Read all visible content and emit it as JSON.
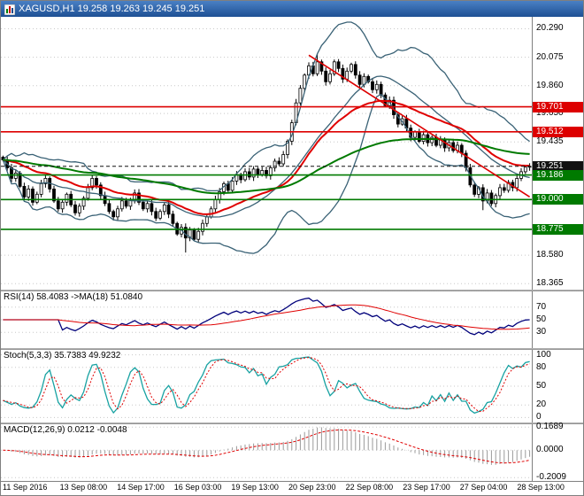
{
  "window": {
    "title": "XAGUSD,H1 19.258 19.263 19.245 19.251",
    "symbol": "XAGUSD,H1",
    "quote_open": "19.258",
    "quote_high": "19.263",
    "quote_low": "19.245",
    "quote_close": "19.251"
  },
  "indicators": {
    "rsi_label": "RSI(14) 58.4083 ->MA(18) 51.0840",
    "stoch_label": "Stoch(5,3,3) 35.7383 49.9232",
    "macd_label": "MACD(12,26,9) 0.0212 -0.0048"
  },
  "chart_data": [
    {
      "type": "candlestick",
      "title": "XAGUSD H1 price with Bollinger Bands, moving averages, trendline and horizontal levels",
      "x_labels": [
        "11 Sep 2016",
        "13 Sep 08:00",
        "14 Sep 17:00",
        "16 Sep 03:00",
        "19 Sep 13:00",
        "20 Sep 23:00",
        "22 Sep 08:00",
        "23 Sep 17:00",
        "27 Sep 04:00",
        "28 Sep 13:00"
      ],
      "ylim": [
        18.32,
        20.38
      ],
      "y_ticks": [
        {
          "label": "20.290",
          "value": 20.29
        },
        {
          "label": "20.075",
          "value": 20.075
        },
        {
          "label": "19.860",
          "value": 19.86
        },
        {
          "label": "19.650",
          "value": 19.65
        },
        {
          "label": "19.435",
          "value": 19.435
        },
        {
          "label": "18.580",
          "value": 18.58
        },
        {
          "label": "18.365",
          "value": 18.365
        }
      ],
      "closes": [
        19.3,
        19.24,
        19.16,
        19.2,
        19.1,
        19.02,
        19.08,
        18.98,
        19.04,
        19.12,
        19.16,
        19.08,
        18.99,
        18.93,
        18.98,
        19.04,
        18.96,
        18.9,
        18.95,
        19.01,
        19.09,
        19.16,
        19.11,
        19.03,
        18.97,
        18.91,
        18.87,
        18.93,
        18.99,
        18.95,
        19.0,
        19.05,
        18.98,
        18.93,
        18.97,
        18.91,
        18.86,
        18.91,
        18.96,
        18.89,
        18.82,
        18.74,
        18.79,
        18.71,
        18.77,
        18.7,
        18.76,
        18.82,
        18.87,
        18.93,
        19.0,
        19.06,
        19.12,
        19.07,
        19.14,
        19.19,
        19.15,
        19.21,
        19.17,
        19.23,
        19.19,
        19.22,
        19.18,
        19.24,
        19.29,
        19.27,
        19.34,
        19.44,
        19.58,
        19.73,
        19.84,
        19.94,
        20.01,
        19.95,
        20.04,
        19.97,
        19.89,
        19.95,
        20.04,
        19.99,
        19.91,
        19.97,
        20.02,
        19.94,
        19.87,
        19.93,
        19.89,
        19.83,
        19.87,
        19.79,
        19.71,
        19.75,
        19.64,
        19.57,
        19.61,
        19.54,
        19.47,
        19.51,
        19.44,
        19.49,
        19.43,
        19.47,
        19.41,
        19.45,
        19.39,
        19.43,
        19.37,
        19.41,
        19.35,
        19.24,
        19.11,
        19.04,
        19.09,
        18.99,
        19.05,
        18.97,
        19.03,
        19.09,
        19.07,
        19.13,
        19.09,
        19.16,
        19.21,
        19.245,
        19.251
      ],
      "spikes": [
        {
          "bar": 43,
          "low": 18.6
        },
        {
          "bar": 74,
          "high": 20.1
        },
        {
          "bar": 113,
          "low": 18.92
        }
      ],
      "hlines": [
        {
          "label": "19.701",
          "price": 19.701,
          "color": "#dd0000",
          "style": "solid",
          "role": "resistance"
        },
        {
          "label": "19.512",
          "price": 19.512,
          "color": "#dd0000",
          "style": "solid",
          "role": "resistance"
        },
        {
          "label": "19.251",
          "price": 19.251,
          "color": "#111111",
          "style": "dashed",
          "role": "current-price"
        },
        {
          "label": "19.186",
          "price": 19.186,
          "color": "#007a00",
          "style": "solid",
          "role": "support"
        },
        {
          "label": "19.000",
          "price": 19.0,
          "color": "#007a00",
          "style": "solid",
          "role": "support"
        },
        {
          "label": "18.775",
          "price": 18.775,
          "color": "#007a00",
          "style": "solid",
          "role": "support"
        }
      ],
      "trendline": {
        "from_bar": 72,
        "from_price": 20.09,
        "to_bar": 124,
        "to_price": 19.02,
        "color": "#dd0000"
      },
      "overlays": {
        "bollinger": {
          "period": 20,
          "deviation": 2,
          "color": "#3a6276"
        },
        "ma_red": {
          "period": 28,
          "color": "#e00000"
        },
        "ma_green": {
          "period": 85,
          "color": "#007a00"
        }
      },
      "candle_colors": {
        "up_fill": "#ffffff",
        "down_fill": "#000000",
        "outline": "#000000"
      }
    },
    {
      "type": "line",
      "name": "RSI",
      "params": "RSI(14) with MA(18)",
      "current": 58.4083,
      "ma_current": 51.084,
      "levels": [
        {
          "label": "70",
          "value": 70
        },
        {
          "label": "50",
          "value": 50
        },
        {
          "label": "30",
          "value": 30
        }
      ],
      "range": [
        5,
        95
      ],
      "colors": {
        "rsi": "#00007a",
        "ma": "#e00000"
      }
    },
    {
      "type": "line",
      "name": "Stochastic",
      "params": "Stoch(5,3,3)",
      "current_k": 35.7383,
      "current_d": 49.9232,
      "levels": [
        {
          "label": "100",
          "value": 100
        },
        {
          "label": "80",
          "value": 80
        },
        {
          "label": "50",
          "value": 50
        },
        {
          "label": "20",
          "value": 20
        },
        {
          "label": "0",
          "value": 0
        }
      ],
      "range": [
        -8,
        108
      ],
      "colors": {
        "k": "#18a2a2",
        "d": "#e00000"
      }
    },
    {
      "type": "bar",
      "name": "MACD",
      "params": "MACD(12,26,9)",
      "current_macd": 0.0212,
      "current_signal": -0.0048,
      "levels": [
        {
          "label": "0.1689",
          "value": 0.1689
        },
        {
          "label": "0.0000",
          "value": 0.0
        },
        {
          "label": "-0.2009",
          "value": -0.2009
        }
      ],
      "range": [
        -0.225,
        0.19
      ],
      "colors": {
        "hist": "#9a9a9a",
        "signal": "#e00000"
      }
    }
  ]
}
